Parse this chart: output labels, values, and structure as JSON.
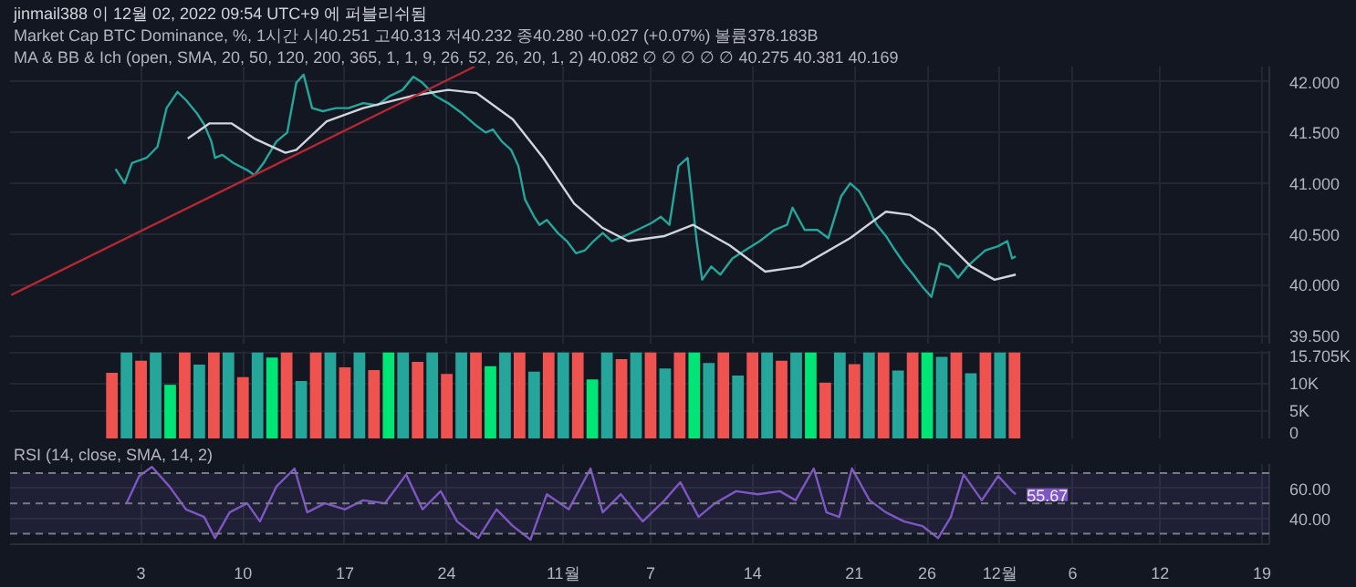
{
  "chart_data": [
    {
      "type": "line",
      "title": "Market Cap BTC Dominance, %, 1시간  시40.251 고40.313 저40.232 종40.280 +0.027 (+0.07%) 볼륨378.183B",
      "subtitle": "MA & BB & Ich (open, SMA, 20, 50, 120, 200, 365, 1, 1, 9, 26, 52, 26, 20, 1, 2) 40.082 ∅ ∅ ∅ ∅ ∅ 40.275 40.381 40.169",
      "annotations": [
        "jinmail388 이 12월 02, 2022 09:54 UTC+9 에 퍼블리쉬됨"
      ],
      "xlim": [
        "2022-09-24",
        "2022-12-19T12:00"
      ],
      "ylim": [
        39.42,
        42.15
      ],
      "yticks": [
        {
          "value": 39.5,
          "label": "39.500"
        },
        {
          "value": 40,
          "label": "40.000"
        },
        {
          "value": 40.5,
          "label": "40.500"
        },
        {
          "value": 41,
          "label": "41.000"
        },
        {
          "value": 41.5,
          "label": "41.500"
        },
        {
          "value": 42,
          "label": "42.000"
        }
      ],
      "xticks": [
        {
          "value": "2022-10-03",
          "label": null
        },
        {
          "value": "2022-10-10",
          "label": null
        },
        {
          "value": "2022-10-17",
          "label": null
        },
        {
          "value": "2022-10-24",
          "label": null
        },
        {
          "value": "2022-11-01",
          "label": null
        },
        {
          "value": "2022-11-07",
          "label": null
        },
        {
          "value": "2022-11-14",
          "label": null
        },
        {
          "value": "2022-11-21",
          "label": null
        },
        {
          "value": "2022-11-26",
          "label": null
        },
        {
          "value": "2022-12-01",
          "label": null
        },
        {
          "value": "2022-12-06",
          "label": null
        },
        {
          "value": "2022-12-12",
          "label": null
        },
        {
          "value": "2022-12-19",
          "label": null
        }
      ],
      "tick_labels": "y",
      "grid": true,
      "line_style": "solid",
      "series": [
        {
          "color": "#26a69a",
          "x": [
            "2022-10-01T06:00",
            "2022-10-01T21:00",
            "2022-10-02T09:00",
            "2022-10-03T09:00",
            "2022-10-04T03:00",
            "2022-10-04T18:00",
            "2022-10-05T12:00",
            "2022-10-06T02:00",
            "2022-10-06T20:00",
            "2022-10-07T08:00",
            "2022-10-07T20:00",
            "2022-10-08T02:00",
            "2022-10-08T14:00",
            "2022-10-09T08:00",
            "2022-10-10T07:00",
            "2022-10-10T19:00",
            "2022-10-11T10:00",
            "2022-10-12T07:00",
            "2022-10-13T01:00",
            "2022-10-13T16:00",
            "2022-10-14T04:00",
            "2022-10-14T18:00",
            "2022-10-15T12:00",
            "2022-10-16T09:00",
            "2022-10-17T06:00",
            "2022-10-18T06:00",
            "2022-10-19T06:00",
            "2022-10-20T02:00",
            "2022-10-20T23:00",
            "2022-10-21T17:00",
            "2022-10-22T08:00",
            "2022-10-23T05:00",
            "2022-10-24T02:00",
            "2022-10-25T01:00",
            "2022-10-25T22:00",
            "2022-10-26T16:00",
            "2022-10-27T04:00",
            "2022-10-27T19:00",
            "2022-10-28T10:00",
            "2022-10-28T22:00",
            "2022-10-29T09:00",
            "2022-10-30T00:00",
            "2022-10-30T09:00",
            "2022-10-30T21:00",
            "2022-10-31T15:00",
            "2022-11-01T06:00",
            "2022-11-01T21:00",
            "2022-11-02T12:00",
            "2022-11-03T02:00",
            "2022-11-03T17:00",
            "2022-11-04T08:00",
            "2022-11-05T05:00",
            "2022-11-06T02:00",
            "2022-11-07T02:00",
            "2022-11-07T17:00",
            "2022-11-08T07:00",
            "2022-11-08T22:00",
            "2022-11-09T13:00",
            "2022-11-10T04:00",
            "2022-11-10T13:00",
            "2022-11-11T04:00",
            "2022-11-11T19:00",
            "2022-11-12T15:00",
            "2022-11-13T12:00",
            "2022-11-14T12:00",
            "2022-11-15T12:00",
            "2022-11-16T09:00",
            "2022-11-16T18:00",
            "2022-11-17T14:00",
            "2022-11-18T11:00",
            "2022-11-19T05:00",
            "2022-11-20T02:00",
            "2022-11-20T17:00",
            "2022-11-21T08:00",
            "2022-11-21T23:00",
            "2022-11-22T13:00",
            "2022-11-23T04:00",
            "2022-11-23T19:00",
            "2022-11-24T10:00",
            "2022-11-25T01:00",
            "2022-11-25T16:00",
            "2022-11-26T07:00",
            "2022-11-26T21:00",
            "2022-11-27T12:00",
            "2022-11-28T03:00",
            "2022-11-28T18:00",
            "2022-11-29T09:00",
            "2022-11-30T00:00",
            "2022-11-30T21:00",
            "2022-12-01T12:00",
            "2022-12-01T20:00",
            "2022-12-02T02:00"
          ],
          "values": [
            41.14,
            41.0,
            41.2,
            41.25,
            41.36,
            41.74,
            41.9,
            41.82,
            41.69,
            41.58,
            41.41,
            41.25,
            41.28,
            41.2,
            41.13,
            41.08,
            41.2,
            41.41,
            41.5,
            41.99,
            42.07,
            41.74,
            41.71,
            41.74,
            41.74,
            41.79,
            41.77,
            41.86,
            41.92,
            42.05,
            41.99,
            41.86,
            41.79,
            41.69,
            41.58,
            41.5,
            41.53,
            41.41,
            41.33,
            41.17,
            40.84,
            40.67,
            40.59,
            40.64,
            40.51,
            40.43,
            40.31,
            40.34,
            40.43,
            40.51,
            40.43,
            40.48,
            40.54,
            40.61,
            40.67,
            40.59,
            41.17,
            41.25,
            40.43,
            40.05,
            40.18,
            40.1,
            40.26,
            40.34,
            40.43,
            40.54,
            40.59,
            40.76,
            40.54,
            40.54,
            40.46,
            40.87,
            41.0,
            40.92,
            40.76,
            40.59,
            40.48,
            40.34,
            40.21,
            40.1,
            39.98,
            39.88,
            40.21,
            40.18,
            40.07,
            40.18,
            40.26,
            40.34,
            40.38,
            40.43,
            40.26,
            40.28
          ]
        },
        {
          "color": "#d1d4dc",
          "x": [
            "2022-10-06T05:00",
            "2022-10-07T17:00",
            "2022-10-09T05:00",
            "2022-10-10T19:00",
            "2022-10-12T22:00",
            "2022-10-13T16:00",
            "2022-10-15T18:00",
            "2022-10-18T06:00",
            "2022-10-21T14:00",
            "2022-10-24T02:00",
            "2022-10-26T01:00",
            "2022-10-28T13:00",
            "2022-10-30T15:00",
            "2022-11-01T18:00",
            "2022-11-03T17:00",
            "2022-11-05T11:00",
            "2022-11-07T23:00",
            "2022-11-09T22:00",
            "2022-11-12T10:00",
            "2022-11-14T21:00",
            "2022-11-17T08:00",
            "2022-11-20T17:00",
            "2022-11-23T04:00",
            "2022-11-24T19:00",
            "2022-11-26T12:00",
            "2022-11-29T00:00",
            "2022-11-30T15:00",
            "2022-12-02T02:00"
          ],
          "values": [
            41.44,
            41.59,
            41.59,
            41.44,
            41.3,
            41.33,
            41.61,
            41.74,
            41.86,
            41.92,
            41.89,
            41.63,
            41.25,
            40.8,
            40.56,
            40.43,
            40.48,
            40.59,
            40.39,
            40.13,
            40.18,
            40.46,
            40.72,
            40.69,
            40.54,
            40.18,
            40.05,
            40.1
          ]
        },
        {
          "color": "#b22833",
          "x": [
            "2022-09-24T02:00",
            "2022-10-25T22:00"
          ],
          "values": [
            39.9,
            42.15
          ]
        }
      ]
    },
    {
      "type": "bar",
      "xlim": [
        "2022-09-24",
        "2022-12-19T12:00"
      ],
      "ylim": [
        0,
        16000
      ],
      "yticks": [
        0,
        {
          "value": 5000,
          "label": "5K"
        },
        {
          "value": 10000,
          "label": "10K"
        },
        {
          "value": 15705,
          "label": "15.705K"
        }
      ],
      "xticks": [
        {
          "value": "2022-10-03",
          "label": null
        },
        {
          "value": "2022-10-10",
          "label": null
        },
        {
          "value": "2022-10-17",
          "label": null
        },
        {
          "value": "2022-10-24",
          "label": null
        },
        {
          "value": "2022-11-01",
          "label": null
        },
        {
          "value": "2022-11-07",
          "label": null
        },
        {
          "value": "2022-11-14",
          "label": null
        },
        {
          "value": "2022-11-21",
          "label": null
        },
        {
          "value": "2022-11-26",
          "label": null
        },
        {
          "value": "2022-12-01",
          "label": null
        },
        {
          "value": "2022-12-06",
          "label": null
        },
        {
          "value": "2022-12-12",
          "label": null
        },
        {
          "value": "2022-12-19",
          "label": null
        }
      ],
      "tick_labels": "y",
      "grid": true,
      "x": [
        "2022-10-01",
        "2022-10-02",
        "2022-10-03",
        "2022-10-04",
        "2022-10-05",
        "2022-10-06",
        "2022-10-07",
        "2022-10-08",
        "2022-10-09",
        "2022-10-10",
        "2022-10-11",
        "2022-10-12",
        "2022-10-13",
        "2022-10-14",
        "2022-10-15",
        "2022-10-16",
        "2022-10-17",
        "2022-10-18",
        "2022-10-19",
        "2022-10-20",
        "2022-10-21",
        "2022-10-22",
        "2022-10-23",
        "2022-10-24",
        "2022-10-25",
        "2022-10-26",
        "2022-10-27",
        "2022-10-28",
        "2022-10-29",
        "2022-10-30",
        "2022-10-31",
        "2022-11-01",
        "2022-11-02",
        "2022-11-03",
        "2022-11-04",
        "2022-11-05",
        "2022-11-06",
        "2022-11-07",
        "2022-11-08",
        "2022-11-09",
        "2022-11-10",
        "2022-11-11",
        "2022-11-12",
        "2022-11-13",
        "2022-11-14",
        "2022-11-15",
        "2022-11-16",
        "2022-11-17",
        "2022-11-18",
        "2022-11-19",
        "2022-11-20",
        "2022-11-21",
        "2022-11-22",
        "2022-11-23",
        "2022-11-24",
        "2022-11-25",
        "2022-11-26",
        "2022-11-27",
        "2022-11-28",
        "2022-11-29",
        "2022-11-30",
        "2022-12-01",
        "2022-12-02"
      ],
      "values": [
        12000,
        15700,
        14200,
        15700,
        9800,
        15700,
        13500,
        15700,
        15700,
        11200,
        15700,
        14800,
        15700,
        10500,
        15700,
        15700,
        13000,
        15700,
        12500,
        15700,
        15700,
        14000,
        15700,
        11800,
        15700,
        15700,
        13200,
        15700,
        15700,
        12200,
        15700,
        15700,
        15700,
        10800,
        15700,
        14500,
        15700,
        15700,
        12800,
        15700,
        15700,
        13800,
        15700,
        11500,
        15700,
        15700,
        14200,
        15700,
        15700,
        10200,
        15700,
        13600,
        15700,
        15700,
        12400,
        15700,
        15700,
        14900,
        15700,
        11900,
        15700,
        15700,
        15700
      ],
      "colors": [
        "#ef5350",
        "#26a69a",
        "#ef5350",
        "#26a69a",
        "#00e676",
        "#ef5350",
        "#26a69a",
        "#ef5350",
        "#26a69a",
        "#ef5350",
        "#26a69a",
        "#00e676",
        "#ef5350",
        "#26a69a",
        "#ef5350",
        "#26a69a",
        "#ef5350",
        "#26a69a",
        "#ef5350",
        "#00e676",
        "#26a69a",
        "#ef5350",
        "#26a69a",
        "#ef5350",
        "#26a69a",
        "#ef5350",
        "#00e676",
        "#26a69a",
        "#ef5350",
        "#26a69a",
        "#ef5350",
        "#26a69a",
        "#ef5350",
        "#00e676",
        "#26a69a",
        "#ef5350",
        "#26a69a",
        "#ef5350",
        "#26a69a",
        "#ef5350",
        "#00e676",
        "#26a69a",
        "#ef5350",
        "#26a69a",
        "#ef5350",
        "#26a69a",
        "#ef5350",
        "#26a69a",
        "#00e676",
        "#ef5350",
        "#26a69a",
        "#ef5350",
        "#26a69a",
        "#ef5350",
        "#26a69a",
        "#ef5350",
        "#00e676",
        "#26a69a",
        "#ef5350",
        "#26a69a",
        "#ef5350",
        "#26a69a",
        "#ef5350"
      ]
    },
    {
      "type": "line",
      "subtitle": "RSI (14, close, SMA, 14, 2)",
      "annotations": [
        {
          "text": "55.67",
          "x": "2022-12-02T02:00",
          "y": 55.67
        }
      ],
      "xlim": [
        "2022-09-24",
        "2022-12-19T12:00"
      ],
      "ylim": [
        23,
        76
      ],
      "yticks": [
        {
          "value": 40,
          "label": "40.00"
        },
        {
          "value": 60,
          "label": "60.00"
        }
      ],
      "xticks": [
        {
          "value": "2022-10-03",
          "label": "3"
        },
        {
          "value": "2022-10-10",
          "label": "10"
        },
        {
          "value": "2022-10-17",
          "label": "17"
        },
        {
          "value": "2022-10-24",
          "label": "24"
        },
        {
          "value": "2022-11-01",
          "label": "11월"
        },
        {
          "value": "2022-11-07",
          "label": "7"
        },
        {
          "value": "2022-11-14",
          "label": "14"
        },
        {
          "value": "2022-11-21",
          "label": "21"
        },
        {
          "value": "2022-11-26",
          "label": "26"
        },
        {
          "value": "2022-12-01",
          "label": "12월"
        },
        {
          "value": "2022-12-06",
          "label": "6"
        },
        {
          "value": "2022-12-12",
          "label": "12"
        },
        {
          "value": "2022-12-19",
          "label": "19"
        }
      ],
      "grid": true,
      "ref_lines": [
        {
          "axis": "y",
          "value": 70,
          "label": null,
          "line_style": "dashed",
          "color": "#787b86"
        },
        {
          "axis": "y",
          "value": 50,
          "label": null,
          "line_style": "dashed",
          "color": "#787b86"
        },
        {
          "axis": "y",
          "value": 30,
          "label": null,
          "line_style": "dashed",
          "color": "#787b86"
        }
      ],
      "bands": [
        {
          "axis": "y",
          "from": 30,
          "to": 70,
          "label": null,
          "color": "#7e57c2"
        }
      ],
      "series": [
        {
          "color": "#7e57c2",
          "x": [
            "2022-10-02T00:00",
            "2022-10-02T21:00",
            "2022-10-03T18:00",
            "2022-10-04T23:00",
            "2022-10-06T02:00",
            "2022-10-07T08:00",
            "2022-10-08T02:00",
            "2022-10-09T02:00",
            "2022-10-10T07:00",
            "2022-10-11T04:00",
            "2022-10-12T07:00",
            "2022-10-13T13:00",
            "2022-10-14T10:00",
            "2022-10-15T15:00",
            "2022-10-17T00:00",
            "2022-10-18T06:00",
            "2022-10-19T18:00",
            "2022-10-21T05:00",
            "2022-10-22T08:00",
            "2022-10-23T14:00",
            "2022-10-24T17:00",
            "2022-10-26T04:00",
            "2022-10-27T10:00",
            "2022-10-28T13:00",
            "2022-10-29T18:00",
            "2022-10-30T21:00",
            "2022-11-01T09:00",
            "2022-11-02T21:00",
            "2022-11-03T17:00",
            "2022-11-04T23:00",
            "2022-11-06T11:00",
            "2022-11-07T23:00",
            "2022-11-09T01:00",
            "2022-11-10T07:00",
            "2022-11-11T10:00",
            "2022-11-12T21:00",
            "2022-11-14T09:00",
            "2022-11-15T21:00",
            "2022-11-16T23:00",
            "2022-11-18T05:00",
            "2022-11-19T02:00",
            "2022-11-19T23:00",
            "2022-11-20T20:00",
            "2022-11-22T01:00",
            "2022-11-23T04:00",
            "2022-11-24T10:00",
            "2022-11-25T16:00",
            "2022-11-26T18:00",
            "2022-11-27T15:00",
            "2022-11-28T12:00",
            "2022-11-29T18:00",
            "2022-11-30T21:00",
            "2022-12-01T20:00",
            "2022-12-02T02:00"
          ],
          "values": [
            50,
            68,
            74,
            61,
            46,
            41,
            27,
            44,
            50,
            38,
            61,
            73,
            44,
            50,
            46,
            52,
            50,
            69,
            46,
            58,
            38,
            27,
            46,
            35,
            26,
            56,
            46,
            73,
            44,
            56,
            38,
            52,
            64,
            41,
            50,
            58,
            56,
            58,
            52,
            73,
            44,
            41,
            73,
            52,
            44,
            38,
            35,
            27,
            41,
            69,
            52,
            68,
            58,
            56
          ]
        }
      ]
    }
  ]
}
